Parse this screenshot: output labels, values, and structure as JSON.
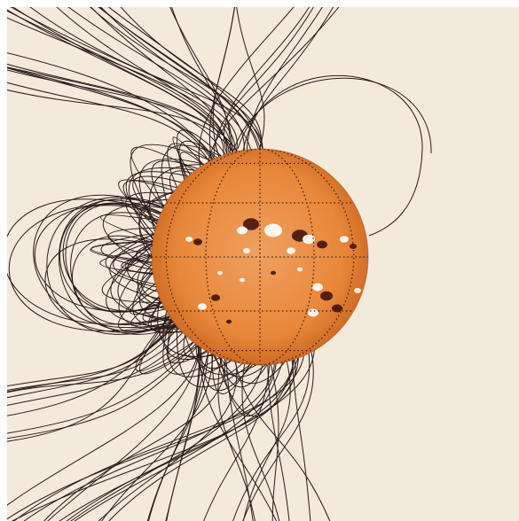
{
  "figure": {
    "background_color": "#f4eadc",
    "field_line_color": "#2a1a1a",
    "sun_base_color": "#e8873a",
    "sun_limb_color": "#c96420",
    "grid_color": "#3a2010",
    "bright_spot_color": "#ffffff",
    "dark_spot_color": "#3a0c0c",
    "icons": [
      "solar-disk",
      "magnetic-field-lines",
      "lat-lon-grid"
    ]
  }
}
